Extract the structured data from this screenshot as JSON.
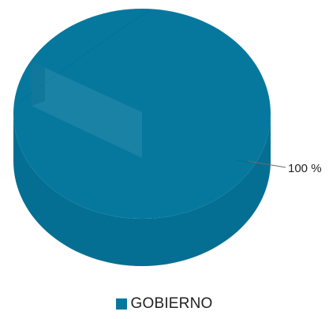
{
  "chart_data": {
    "type": "pie",
    "variant": "3d",
    "categories": [
      "GOBIERNO"
    ],
    "values": [
      100
    ],
    "data_labels": [
      "100 %"
    ],
    "legend_position": "bottom",
    "colors": {
      "slice_top": "#06789e",
      "slice_side": "#056f93",
      "slice_shadow": "#04688a",
      "label_line": "#6b6b6b",
      "label_text": "#222222"
    }
  }
}
